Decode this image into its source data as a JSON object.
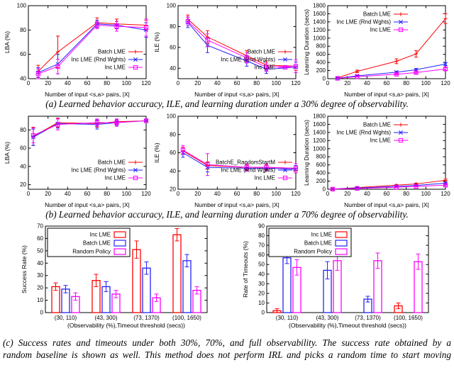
{
  "figure": {
    "captions": {
      "a": "(a) Learned behavior accuracy, ILE, and learning duration under a 30% degree of observability.",
      "b": "(b) Learned behavior accuracy, ILE, and learning duration under a 70% degree of observability.",
      "c_line1": "(c) Success rates and timeouts under both 30%, 70%, and full observability. The success rate obtained by a",
      "c_line2": "random baseline is shown as well. This method does not perform IRL and picks a random time to start moving"
    },
    "colors": {
      "batch_lme": "#ff0000",
      "inc_lme_rnd_wghts": "#2222ff",
      "inc_lme": "#ff00ff",
      "axis": "#000000",
      "background": "#ffffff"
    }
  },
  "chart_data": [
    {
      "id": "lba30",
      "type": "line",
      "ylabel": "LBA (%)",
      "xlabel": "Number of input <s,a> pairs, |X|",
      "xlim": [
        0,
        120
      ],
      "xticks": [
        0,
        20,
        40,
        60,
        80,
        100,
        120
      ],
      "ylim": [
        40,
        100
      ],
      "yticks": [
        40,
        60,
        80,
        100
      ],
      "x": [
        10,
        30,
        70,
        90,
        120
      ],
      "legend": "br",
      "series": [
        {
          "name": "Batch LME",
          "color": "#ff0000",
          "values": [
            46,
            62,
            86,
            85,
            84
          ],
          "err": [
            5,
            13,
            4,
            4,
            4
          ]
        },
        {
          "name": "Inc LME (Rnd Wghts)",
          "color": "#2222ff",
          "values": [
            45,
            52,
            85,
            84,
            80
          ],
          "err": [
            4,
            8,
            3,
            3,
            6
          ]
        },
        {
          "name": "Inc LME",
          "color": "#ff00ff",
          "values": [
            44,
            50,
            84,
            83,
            82
          ],
          "err": [
            4,
            6,
            3,
            4,
            7
          ]
        }
      ]
    },
    {
      "id": "ile30",
      "type": "line",
      "ylabel": "ILE (%)",
      "xlabel": "Number of input <s,a> pairs, |X|",
      "xlim": [
        0,
        120
      ],
      "xticks": [
        0,
        20,
        40,
        60,
        80,
        100,
        120
      ],
      "ylim": [
        30,
        100
      ],
      "yticks": [
        40,
        60,
        80,
        100
      ],
      "x": [
        10,
        30,
        70,
        90,
        120
      ],
      "legend": "br",
      "series": [
        {
          "name": "Batch LME",
          "color": "#ff0000",
          "values": [
            87,
            70,
            52,
            43,
            42
          ],
          "err": [
            4,
            6,
            5,
            4,
            4
          ]
        },
        {
          "name": "Inc LME (Rnd Wghts)",
          "color": "#2222ff",
          "values": [
            84,
            62,
            47,
            39,
            41
          ],
          "err": [
            5,
            7,
            5,
            4,
            5
          ]
        },
        {
          "name": "Inc LME",
          "color": "#ff00ff",
          "values": [
            85,
            67,
            50,
            41,
            42
          ],
          "err": [
            4,
            6,
            5,
            4,
            6
          ]
        }
      ]
    },
    {
      "id": "dur30",
      "type": "line",
      "ylabel": "Learning Duration (secs)",
      "xlabel": "Number of input <s,a> pairs, |X|",
      "xlim": [
        0,
        120
      ],
      "xticks": [
        0,
        20,
        40,
        60,
        80,
        100,
        120
      ],
      "ylim": [
        0,
        1800
      ],
      "yticks": [
        0,
        200,
        400,
        600,
        800,
        1000,
        1200,
        1400,
        1600,
        1800
      ],
      "x": [
        10,
        30,
        70,
        90,
        120
      ],
      "legend": "tl",
      "series": [
        {
          "name": "Batch LME",
          "color": "#ff0000",
          "values": [
            20,
            180,
            430,
            610,
            1480
          ],
          "err": [
            10,
            30,
            60,
            80,
            120
          ]
        },
        {
          "name": "Inc LME (Rnd Wghts)",
          "color": "#2222ff",
          "values": [
            10,
            70,
            160,
            220,
            360
          ],
          "err": [
            5,
            15,
            25,
            30,
            40
          ]
        },
        {
          "name": "Inc LME",
          "color": "#ff00ff",
          "values": [
            8,
            50,
            110,
            150,
            240
          ],
          "err": [
            5,
            10,
            20,
            25,
            30
          ]
        }
      ]
    },
    {
      "id": "lba70",
      "type": "line",
      "ylabel": "LBA (%)",
      "xlabel": "Number of input <s,a> pairs, |X|",
      "xlim": [
        0,
        120
      ],
      "xticks": [
        0,
        20,
        40,
        60,
        80,
        100,
        120
      ],
      "ylim": [
        15,
        95
      ],
      "yticks": [
        20,
        40,
        60,
        80
      ],
      "x": [
        5,
        30,
        70,
        90,
        120
      ],
      "legend": "br",
      "series": [
        {
          "name": "Batch LME",
          "color": "#ff0000",
          "values": [
            73,
            88,
            87,
            89,
            90
          ],
          "err": [
            10,
            5,
            4,
            3,
            2
          ]
        },
        {
          "name": "Inc LME (Rnd Wghts)",
          "color": "#2222ff",
          "values": [
            72,
            87,
            86,
            88,
            90
          ],
          "err": [
            9,
            5,
            5,
            3,
            2
          ]
        },
        {
          "name": "Inc LME",
          "color": "#ff00ff",
          "values": [
            74,
            86,
            88,
            88,
            90
          ],
          "err": [
            8,
            6,
            4,
            4,
            2
          ]
        }
      ]
    },
    {
      "id": "ile70",
      "type": "line",
      "ylabel": "ILE (%)",
      "xlabel": "Number of input <s,a> pairs, |X|",
      "xlim": [
        0,
        120
      ],
      "xticks": [
        0,
        20,
        40,
        60,
        80,
        100,
        120
      ],
      "ylim": [
        20,
        100
      ],
      "yticks": [
        20,
        40,
        60,
        80,
        100
      ],
      "x": [
        5,
        30,
        70,
        90,
        120
      ],
      "legend": "br",
      "series": [
        {
          "name": "BatchE_RandomStartM",
          "color": "#ff0000",
          "values": [
            62,
            46,
            44,
            44,
            43
          ],
          "err": [
            4,
            4,
            3,
            3,
            3
          ]
        },
        {
          "name": "Inc LME (Rnd Wghts)",
          "color": "#2222ff",
          "values": [
            60,
            44,
            43,
            43,
            42
          ],
          "err": [
            5,
            5,
            3,
            3,
            4
          ]
        },
        {
          "name": "Inc LME",
          "color": "#ff00ff",
          "values": [
            63,
            47,
            44,
            44,
            43
          ],
          "err": [
            5,
            12,
            4,
            4,
            5
          ]
        }
      ]
    },
    {
      "id": "dur70",
      "type": "line",
      "ylabel": "Learning Duration (secs)",
      "xlabel": "Number of input <s,a> pairs, |X|",
      "xlim": [
        0,
        120
      ],
      "xticks": [
        0,
        20,
        40,
        60,
        80,
        100,
        120
      ],
      "ylim": [
        0,
        1800
      ],
      "yticks": [
        0,
        200,
        400,
        600,
        800,
        1000,
        1200,
        1400,
        1600,
        1800
      ],
      "x": [
        5,
        30,
        70,
        90,
        120
      ],
      "legend": "tl",
      "series": [
        {
          "name": "Batch LME",
          "color": "#ff0000",
          "values": [
            5,
            40,
            100,
            130,
            220
          ],
          "err": [
            3,
            8,
            15,
            20,
            30
          ]
        },
        {
          "name": "Inc LME (Rnd Wghts)",
          "color": "#2222ff",
          "values": [
            4,
            30,
            70,
            95,
            150
          ],
          "err": [
            3,
            6,
            12,
            15,
            20
          ]
        },
        {
          "name": "Inc LME",
          "color": "#ff00ff",
          "values": [
            3,
            20,
            50,
            70,
            100
          ],
          "err": [
            2,
            5,
            10,
            12,
            15
          ]
        }
      ]
    },
    {
      "id": "succ",
      "type": "bar",
      "ylabel": "Success Rate (%)",
      "xlabel": "(Observability (%),Timeout threshold (secs))",
      "ylim": [
        0,
        70
      ],
      "yticks": [
        0,
        10,
        20,
        30,
        40,
        50,
        60,
        70
      ],
      "categories": [
        "(30, 110)",
        "(43, 300)",
        "(73, 1370)",
        "(100, 1650)"
      ],
      "series": [
        {
          "name": "Inc LME",
          "color": "#ff0000",
          "values": [
            21,
            26,
            51,
            63
          ],
          "err": [
            3,
            5,
            7,
            5
          ]
        },
        {
          "name": "Batch LME",
          "color": "#2222ff",
          "values": [
            19,
            21,
            36,
            42
          ],
          "err": [
            3,
            4,
            5,
            5
          ]
        },
        {
          "name": "Random Policy",
          "color": "#ff00ff",
          "values": [
            13,
            15,
            12,
            18
          ],
          "err": [
            3,
            3,
            3,
            3
          ]
        }
      ]
    },
    {
      "id": "timeout",
      "type": "bar",
      "ylabel": "Rate of Timeouts (%)",
      "xlabel": "(Observability (%),Timeout threshold (secs))",
      "ylim": [
        0,
        90
      ],
      "yticks": [
        0,
        10,
        20,
        30,
        40,
        50,
        60,
        70,
        80,
        90
      ],
      "categories": [
        "(30, 110)",
        "(43, 300)",
        "(73, 1370)",
        "(100, 1650)"
      ],
      "series": [
        {
          "name": "Inc LME",
          "color": "#ff0000",
          "values": [
            2,
            0,
            0,
            7
          ],
          "err": [
            2,
            0,
            0,
            3
          ]
        },
        {
          "name": "Batch LME",
          "color": "#2222ff",
          "values": [
            57,
            44,
            14,
            0
          ],
          "err": [
            6,
            9,
            3,
            0
          ]
        },
        {
          "name": "Random Policy",
          "color": "#ff00ff",
          "values": [
            47,
            54,
            54,
            53
          ],
          "err": [
            8,
            10,
            8,
            8
          ]
        }
      ]
    }
  ]
}
